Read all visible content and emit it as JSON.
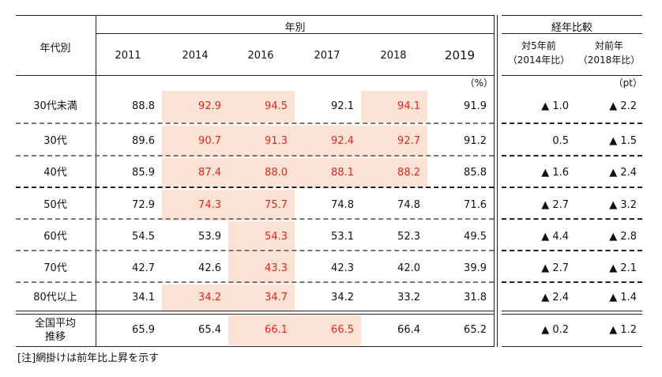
{
  "header": {
    "group_label": "年代別",
    "year_group_label": "年別",
    "comparison_group_label": "経年比較",
    "years": [
      "2011",
      "2014",
      "2016",
      "2017",
      "2018",
      "2019"
    ],
    "comparison_labels": [
      {
        "line1": "対5年前",
        "line2": "（2014年比）"
      },
      {
        "line1": "対前年",
        "line2": "（2018年比）"
      }
    ],
    "unit_percent": "（%）",
    "unit_pt": "（pt）"
  },
  "highlight_color": "#fbe2d5",
  "red_text_color": "#e2261b",
  "rows": [
    {
      "label": "30代未満",
      "values": [
        "88.8",
        "92.9",
        "94.5",
        "92.1",
        "94.1",
        "91.9"
      ],
      "cmp": [
        "▲ 1.0",
        "▲ 2.2"
      ]
    },
    {
      "label": "30代",
      "values": [
        "89.6",
        "90.7",
        "91.3",
        "92.4",
        "92.7",
        "91.2"
      ],
      "cmp": [
        "0.5",
        "▲ 1.5"
      ]
    },
    {
      "label": "40代",
      "values": [
        "85.9",
        "87.4",
        "88.0",
        "88.1",
        "88.2",
        "85.8"
      ],
      "cmp": [
        "▲ 1.6",
        "▲ 2.4"
      ]
    },
    {
      "label": "50代",
      "values": [
        "72.9",
        "74.3",
        "75.7",
        "74.8",
        "74.8",
        "71.6"
      ],
      "cmp": [
        "▲ 2.7",
        "▲ 3.2"
      ]
    },
    {
      "label": "60代",
      "values": [
        "54.5",
        "53.9",
        "54.3",
        "53.1",
        "52.3",
        "49.5"
      ],
      "cmp": [
        "▲ 4.4",
        "▲ 2.8"
      ]
    },
    {
      "label": "70代",
      "values": [
        "42.7",
        "42.6",
        "43.3",
        "42.3",
        "42.0",
        "39.9"
      ],
      "cmp": [
        "▲ 2.7",
        "▲ 2.1"
      ]
    },
    {
      "label": "80代以上",
      "values": [
        "34.1",
        "34.2",
        "34.7",
        "34.2",
        "33.2",
        "31.8"
      ],
      "cmp": [
        "▲ 2.4",
        "▲ 1.4"
      ]
    }
  ],
  "average_row": {
    "label_line1": "全国平均",
    "label_line2": "推移",
    "values": [
      "65.9",
      "65.4",
      "66.1",
      "66.5",
      "66.4",
      "65.2"
    ],
    "cmp": [
      "▲ 0.2",
      "▲ 1.2"
    ]
  },
  "note": "[注]網掛けは前年比上昇を示す",
  "chart_data": {
    "type": "table",
    "columns": [
      "2011",
      "2014",
      "2016",
      "2017",
      "2018",
      "2019",
      "対5年前（2014年比）",
      "対前年（2018年比）"
    ],
    "rows": [
      {
        "label": "30代未満",
        "values": [
          88.8,
          92.9,
          94.5,
          92.1,
          94.1,
          91.9
        ],
        "cmp": [
          "▲ 1.0",
          "▲ 2.2"
        ],
        "rise_from_prev_year": [
          false,
          true,
          true,
          false,
          true,
          false
        ]
      },
      {
        "label": "30代",
        "values": [
          89.6,
          90.7,
          91.3,
          92.4,
          92.7,
          91.2
        ],
        "cmp": [
          "0.5",
          "▲ 1.5"
        ],
        "rise_from_prev_year": [
          false,
          true,
          true,
          true,
          true,
          false
        ]
      },
      {
        "label": "40代",
        "values": [
          85.9,
          87.4,
          88.0,
          88.1,
          88.2,
          85.8
        ],
        "cmp": [
          "▲ 1.6",
          "▲ 2.4"
        ],
        "rise_from_prev_year": [
          false,
          true,
          true,
          true,
          true,
          false
        ]
      },
      {
        "label": "50代",
        "values": [
          72.9,
          74.3,
          75.7,
          74.8,
          74.8,
          71.6
        ],
        "cmp": [
          "▲ 2.7",
          "▲ 3.2"
        ],
        "rise_from_prev_year": [
          false,
          true,
          true,
          false,
          false,
          false
        ]
      },
      {
        "label": "60代",
        "values": [
          54.5,
          53.9,
          54.3,
          53.1,
          52.3,
          49.5
        ],
        "cmp": [
          "▲ 4.4",
          "▲ 2.8"
        ],
        "rise_from_prev_year": [
          false,
          false,
          true,
          false,
          false,
          false
        ]
      },
      {
        "label": "70代",
        "values": [
          42.7,
          42.6,
          43.3,
          42.3,
          42.0,
          39.9
        ],
        "cmp": [
          "▲ 2.7",
          "▲ 2.1"
        ],
        "rise_from_prev_year": [
          false,
          false,
          true,
          false,
          false,
          false
        ]
      },
      {
        "label": "80代以上",
        "values": [
          34.1,
          34.2,
          34.7,
          34.2,
          33.2,
          31.8
        ],
        "cmp": [
          "▲ 2.4",
          "▲ 1.4"
        ],
        "rise_from_prev_year": [
          false,
          true,
          true,
          false,
          false,
          false
        ]
      },
      {
        "label": "全国平均推移",
        "values": [
          65.9,
          65.4,
          66.1,
          66.5,
          66.4,
          65.2
        ],
        "cmp": [
          "▲ 0.2",
          "▲ 1.2"
        ],
        "rise_from_prev_year": [
          false,
          false,
          true,
          true,
          false,
          false
        ]
      }
    ]
  }
}
